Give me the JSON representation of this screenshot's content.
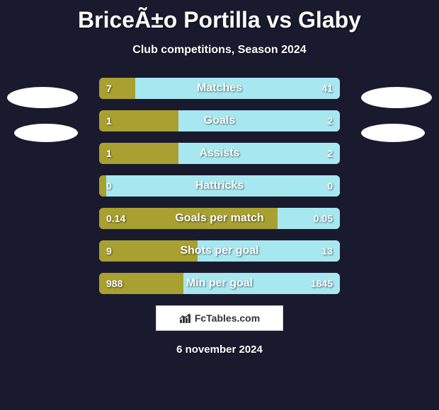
{
  "title": "BriceÃ±o Portilla vs Glaby",
  "subtitle": "Club competitions, Season 2024",
  "colors": {
    "background": "#1a1a2e",
    "bar_bg": "#a7e8f0",
    "bar_left": "#a8a030",
    "bar_right": "#a7e8f0",
    "text": "#ffffff",
    "ellipse": "#ffffff"
  },
  "bars": [
    {
      "label": "Matches",
      "left_val": "7",
      "right_val": "41",
      "left_pct": 15,
      "right_pct": 85
    },
    {
      "label": "Goals",
      "left_val": "1",
      "right_val": "2",
      "left_pct": 33,
      "right_pct": 67
    },
    {
      "label": "Assists",
      "left_val": "1",
      "right_val": "2",
      "left_pct": 33,
      "right_pct": 67
    },
    {
      "label": "Hattricks",
      "left_val": "0",
      "right_val": "0",
      "left_pct": 3,
      "right_pct": 3
    },
    {
      "label": "Goals per match",
      "left_val": "0.14",
      "right_val": "0.05",
      "left_pct": 74,
      "right_pct": 26
    },
    {
      "label": "Shots per goal",
      "left_val": "9",
      "right_val": "13",
      "left_pct": 41,
      "right_pct": 59
    },
    {
      "label": "Min per goal",
      "left_val": "988",
      "right_val": "1845",
      "left_pct": 35,
      "right_pct": 65
    }
  ],
  "footer_logo": "FcTables.com",
  "footer_date": "6 november 2024"
}
